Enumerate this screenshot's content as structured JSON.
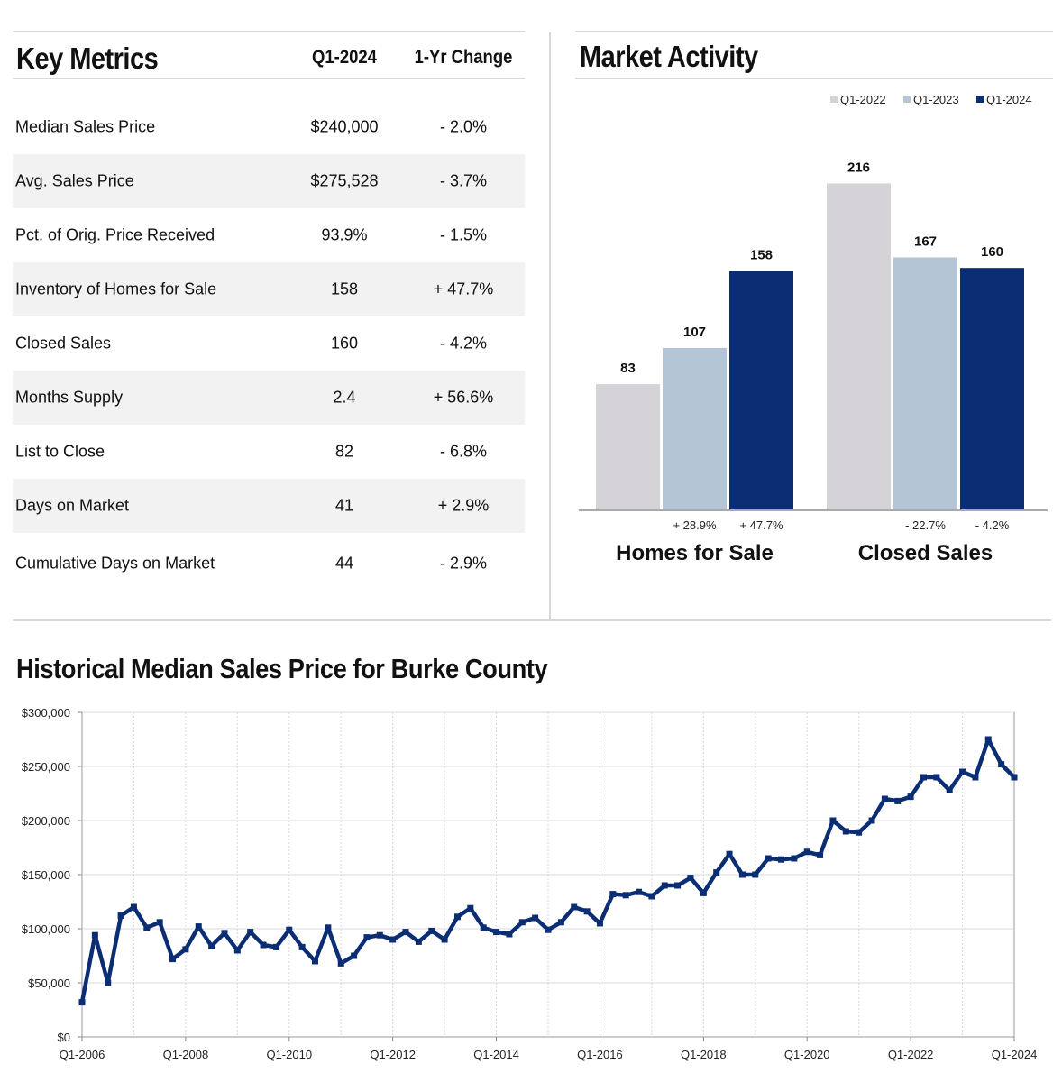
{
  "key_metrics": {
    "title": "Key Metrics",
    "col_period": "Q1-2024",
    "col_change": "1-Yr Change",
    "rows": [
      {
        "label": "Median Sales Price",
        "value": "$240,000",
        "change": "- 2.0%"
      },
      {
        "label": "Avg. Sales Price",
        "value": "$275,528",
        "change": "- 3.7%"
      },
      {
        "label": "Pct. of Orig. Price Received",
        "value": "93.9%",
        "change": "- 1.5%"
      },
      {
        "label": "Inventory of Homes for Sale",
        "value": "158",
        "change": "+ 47.7%"
      },
      {
        "label": "Closed Sales",
        "value": "160",
        "change": "- 4.2%"
      },
      {
        "label": "Months Supply",
        "value": "2.4",
        "change": "+ 56.6%"
      },
      {
        "label": "List to Close",
        "value": "82",
        "change": "- 6.8%"
      },
      {
        "label": "Days on Market",
        "value": "41",
        "change": "+ 2.9%"
      },
      {
        "label": "Cumulative Days on Market",
        "value": "44",
        "change": "- 2.9%"
      }
    ]
  },
  "colors": {
    "q1_2022": "#d5d3d7",
    "q1_2023": "#b4c6d6",
    "q1_2024": "#0b2d74",
    "line": "#0b2d74",
    "grid": "#d9d9d9",
    "rule": "#d8d8d8"
  },
  "chart_data": [
    {
      "type": "bar",
      "title": "Market Activity",
      "categories": [
        "Homes for Sale",
        "Closed Sales"
      ],
      "series": [
        {
          "name": "Q1-2022",
          "values": [
            83,
            216
          ]
        },
        {
          "name": "Q1-2023",
          "values": [
            107,
            167
          ]
        },
        {
          "name": "Q1-2024",
          "values": [
            158,
            160
          ]
        }
      ],
      "changes": [
        {
          "category": "Homes for Sale",
          "labels": [
            "+ 28.9%",
            "+ 47.7%"
          ]
        },
        {
          "category": "Closed Sales",
          "labels": [
            "- 22.7%",
            "- 4.2%"
          ]
        }
      ],
      "legend": "top-right",
      "ylim": [
        0,
        230
      ]
    },
    {
      "type": "line",
      "title": "Historical Median Sales Price for Burke County",
      "xlabel": "",
      "ylabel": "",
      "ylim": [
        0,
        300000
      ],
      "yticks": [
        0,
        50000,
        100000,
        150000,
        200000,
        250000,
        300000
      ],
      "ytick_labels": [
        "$0",
        "$50,000",
        "$100,000",
        "$150,000",
        "$200,000",
        "$250,000",
        "$300,000"
      ],
      "xtick_labels": [
        "Q1-2006",
        "Q1-2008",
        "Q1-2010",
        "Q1-2012",
        "Q1-2014",
        "Q1-2016",
        "Q1-2018",
        "Q1-2020",
        "Q1-2022",
        "Q1-2024"
      ],
      "x_start": "Q1-2006",
      "x_end": "Q1-2024",
      "grid": true,
      "values": [
        32000,
        94000,
        50000,
        112000,
        120000,
        101000,
        106000,
        72000,
        81000,
        102000,
        84000,
        96000,
        80000,
        97000,
        85000,
        83000,
        99000,
        83000,
        70000,
        101000,
        68000,
        75000,
        92000,
        94000,
        90000,
        97000,
        88000,
        98000,
        90000,
        111000,
        119000,
        101000,
        97000,
        95000,
        106000,
        110000,
        99000,
        106000,
        120000,
        116000,
        105000,
        132000,
        131000,
        134000,
        130000,
        140000,
        140000,
        147000,
        133000,
        152000,
        169000,
        150000,
        150000,
        165000,
        164000,
        165000,
        171000,
        168000,
        200000,
        190000,
        189000,
        200000,
        220000,
        218000,
        222000,
        240000,
        240000,
        228000,
        245000,
        240000,
        275000,
        252000,
        240000
      ]
    }
  ]
}
